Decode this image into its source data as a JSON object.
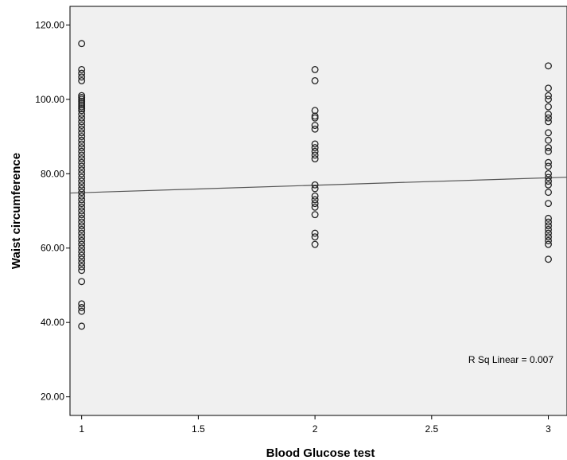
{
  "chart_data": {
    "type": "scatter",
    "xlabel": "Blood Glucose test",
    "ylabel": "Waist circumference",
    "xlim": [
      0.95,
      3.08
    ],
    "ylim": [
      15,
      125
    ],
    "x_ticks": [
      {
        "value": 1,
        "label": "1"
      },
      {
        "value": 1.5,
        "label": "1.5"
      },
      {
        "value": 2,
        "label": "2"
      },
      {
        "value": 2.5,
        "label": "2.5"
      },
      {
        "value": 3,
        "label": "3"
      }
    ],
    "y_ticks": [
      {
        "value": 20,
        "label": "20.00"
      },
      {
        "value": 40,
        "label": "40.00"
      },
      {
        "value": 60,
        "label": "60.00"
      },
      {
        "value": 80,
        "label": "80.00"
      },
      {
        "value": 100,
        "label": "100.00"
      },
      {
        "value": 120,
        "label": "120.00"
      }
    ],
    "series": [
      {
        "x_value": 1,
        "y_values": [
          115,
          108,
          107,
          106,
          105,
          101,
          100.5,
          100,
          99.5,
          99,
          98.5,
          98,
          97.5,
          97,
          96,
          95,
          94,
          93,
          92,
          91,
          90,
          89,
          88,
          87,
          86,
          85,
          84,
          83,
          82,
          81,
          80,
          79,
          78,
          77,
          76,
          75,
          74,
          73,
          72,
          71,
          70,
          69,
          68,
          67,
          66,
          65,
          64,
          63,
          62,
          61,
          60,
          59,
          58,
          57,
          56,
          55,
          54,
          51,
          45,
          44,
          43,
          39
        ]
      },
      {
        "x_value": 2,
        "y_values": [
          108,
          105,
          97,
          95.5,
          95,
          93,
          92,
          88,
          87,
          86,
          85,
          84,
          77,
          76,
          74,
          73,
          72,
          71,
          69,
          64,
          63,
          61
        ]
      },
      {
        "x_value": 3,
        "y_values": [
          109,
          103,
          101,
          100,
          98,
          96,
          95,
          94,
          91,
          89,
          87,
          86,
          83,
          82,
          80,
          79,
          78,
          77,
          75,
          72,
          68,
          67,
          66,
          65,
          64,
          63,
          62,
          61,
          57
        ]
      }
    ],
    "fit_line": {
      "type": "linear",
      "intercept": 72.9,
      "slope": 2.0
    },
    "annotation": "R Sq Linear = 0.007",
    "grid": false,
    "background_color": "#f0f0f0",
    "marker_color": "#222222",
    "line_color": "#555555"
  }
}
